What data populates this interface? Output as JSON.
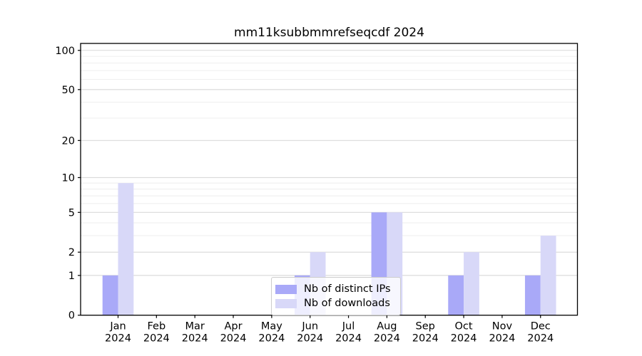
{
  "chart_data": {
    "type": "bar",
    "title": "mm11ksubbmmrefseqcdf 2024",
    "categories": [
      "Jan",
      "Feb",
      "Mar",
      "Apr",
      "May",
      "Jun",
      "Jul",
      "Aug",
      "Sep",
      "Oct",
      "Nov",
      "Dec"
    ],
    "category_year": "2024",
    "series": [
      {
        "name": "Nb of distinct IPs",
        "color": "#a9a9f8",
        "values": [
          1,
          0,
          0,
          0,
          0,
          1,
          0,
          5,
          0,
          1,
          0,
          1
        ]
      },
      {
        "name": "Nb of downloads",
        "color": "#d8d8f8",
        "values": [
          9,
          0,
          0,
          0,
          0,
          2,
          0,
          5,
          0,
          2,
          0,
          3
        ]
      }
    ],
    "xlabel": "",
    "ylabel": "",
    "y_scale": "log1p",
    "y_major_ticks": [
      0,
      1,
      2,
      5,
      10,
      20,
      50,
      100
    ],
    "y_minor_ticks": [
      3,
      4,
      6,
      7,
      8,
      9,
      30,
      40,
      60,
      70,
      80,
      90
    ],
    "ylim": [
      0,
      113
    ],
    "grid": true,
    "legend_position": "lower center"
  },
  "colors": {
    "background": "#ffffff",
    "axis": "#000000",
    "major_grid": "#d9d9d9",
    "minor_grid": "#ededed",
    "legend_border": "#cccccc",
    "tick_text": "#000000"
  }
}
